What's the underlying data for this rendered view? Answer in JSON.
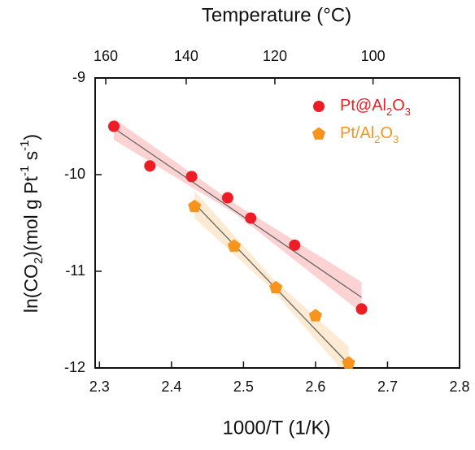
{
  "chart_data": {
    "type": "scatter",
    "top_axis_label": "Temperature (°C)",
    "x_label": "1000/T (1/K)",
    "y_label": "ln(CO2)(mol g Pt-1 s-1)",
    "xlim": [
      2.294,
      2.8
    ],
    "ylim": [
      -12,
      -9
    ],
    "xticks": [
      2.3,
      2.4,
      2.5,
      2.6,
      2.7,
      2.8
    ],
    "yticks": [
      -12,
      -11,
      -10,
      -9
    ],
    "x2ticks": [
      160,
      140,
      120,
      100
    ],
    "legend": "upper right",
    "series": [
      {
        "name": "Pt@Al2O3",
        "color": "#ee1c25",
        "marker": "circle",
        "x": [
          2.32,
          2.37,
          2.428,
          2.478,
          2.51,
          2.571,
          2.664
        ],
        "values": [
          -9.5,
          -9.91,
          -10.02,
          -10.24,
          -10.45,
          -10.73,
          -11.39
        ],
        "fit_x": [
          2.32,
          2.664
        ],
        "fit_y": [
          -9.52,
          -11.27
        ],
        "band_x": [
          2.32,
          2.49,
          2.664
        ],
        "band_upper": [
          -9.42,
          -10.31,
          -11.11
        ],
        "band_lower": [
          -9.64,
          -10.41,
          -11.43
        ]
      },
      {
        "name": "Pt/Al2O3",
        "color": "#f7941d",
        "marker": "pentagon",
        "x": [
          2.432,
          2.487,
          2.545,
          2.6,
          2.646
        ],
        "values": [
          -10.33,
          -10.74,
          -11.17,
          -11.46,
          -11.95
        ],
        "fit_x": [
          2.432,
          2.646
        ],
        "fit_y": [
          -10.3,
          -11.96
        ],
        "band_x": [
          2.432,
          2.54,
          2.646
        ],
        "band_upper": [
          -10.17,
          -11.07,
          -11.78
        ],
        "band_lower": [
          -10.45,
          -11.19,
          -12.1
        ]
      }
    ]
  }
}
